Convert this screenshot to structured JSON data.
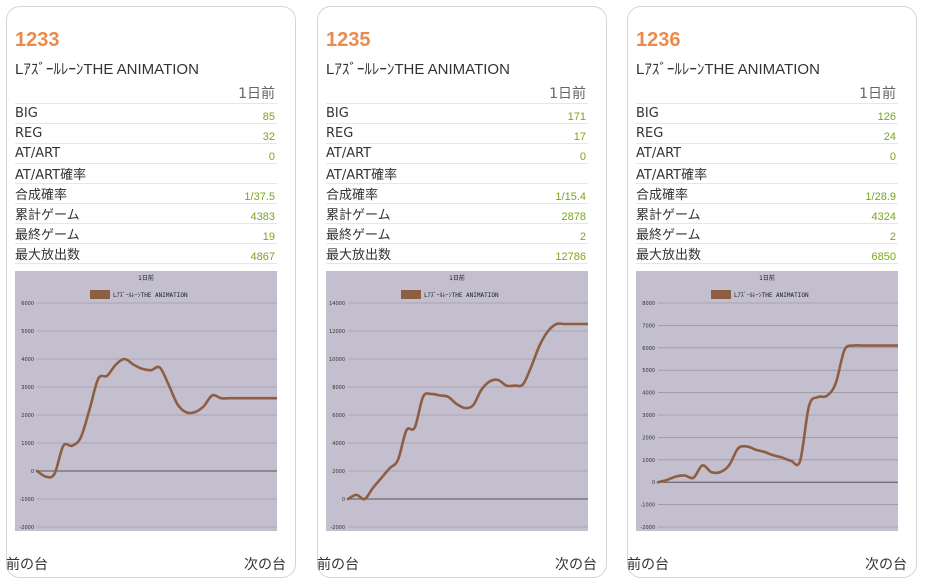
{
  "common": {
    "period_label": "1日前",
    "prev_label": "前の台",
    "next_label": "次の台",
    "colors": {
      "accent": "#ec8a4c",
      "value": "#7aa61b",
      "line": "#8e5e43",
      "plot_bg": "#c3bfcf"
    }
  },
  "machines": [
    {
      "number": "1233",
      "name": "LｱｽﾞｰﾙﾚｰﾝTHE ANIMATION",
      "rows": [
        {
          "label": "BIG",
          "value": "85"
        },
        {
          "label": "REG",
          "value": "32"
        },
        {
          "label": "AT/ART",
          "value": "0"
        },
        {
          "label": "AT/ART確率",
          "value": ""
        },
        {
          "label": "合成確率",
          "value": "1/37.5"
        },
        {
          "label": "累計ゲーム",
          "value": "4383"
        },
        {
          "label": "最終ゲーム",
          "value": "19"
        },
        {
          "label": "最大放出数",
          "value": "4867"
        }
      ]
    },
    {
      "number": "1235",
      "name": "LｱｽﾞｰﾙﾚｰﾝTHE ANIMATION",
      "rows": [
        {
          "label": "BIG",
          "value": "171"
        },
        {
          "label": "REG",
          "value": "17"
        },
        {
          "label": "AT/ART",
          "value": "0"
        },
        {
          "label": "AT/ART確率",
          "value": ""
        },
        {
          "label": "合成確率",
          "value": "1/15.4"
        },
        {
          "label": "累計ゲーム",
          "value": "2878"
        },
        {
          "label": "最終ゲーム",
          "value": "2"
        },
        {
          "label": "最大放出数",
          "value": "12786"
        }
      ]
    },
    {
      "number": "1236",
      "name": "LｱｽﾞｰﾙﾚｰﾝTHE ANIMATION",
      "rows": [
        {
          "label": "BIG",
          "value": "126"
        },
        {
          "label": "REG",
          "value": "24"
        },
        {
          "label": "AT/ART",
          "value": "0"
        },
        {
          "label": "AT/ART確率",
          "value": ""
        },
        {
          "label": "合成確率",
          "value": "1/28.9"
        },
        {
          "label": "累計ゲーム",
          "value": "4324"
        },
        {
          "label": "最終ゲーム",
          "value": "2"
        },
        {
          "label": "最大放出数",
          "value": "6850"
        }
      ]
    }
  ],
  "chart_data": [
    {
      "type": "line",
      "title": "1日前",
      "legend": "LｱｽﾞｰﾙﾚｰﾝTHE ANIMATION",
      "legend_position": "top",
      "grid": true,
      "ylim": [
        -2000,
        6000
      ],
      "yticks": [
        "6000",
        "5000",
        "4000",
        "3000",
        "2000",
        "1000",
        "0",
        "-1000",
        "-2000"
      ],
      "series": [
        {
          "x": [
            0,
            160,
            320,
            480,
            640,
            800,
            960,
            1120,
            1280,
            1440,
            1600,
            1760,
            1920,
            2080,
            2240,
            2400,
            2560,
            2720,
            2880,
            3040,
            3200,
            3360,
            3520,
            3680,
            3840,
            4000,
            4160,
            4383
          ],
          "y": [
            0,
            -200,
            -100,
            900,
            900,
            1200,
            2200,
            3300,
            3400,
            3800,
            4000,
            3800,
            3650,
            3600,
            3700,
            3100,
            2400,
            2100,
            2100,
            2300,
            2700,
            2600,
            2600,
            2600,
            2600,
            2600,
            2600,
            2600
          ]
        }
      ]
    },
    {
      "type": "line",
      "title": "1日前",
      "legend": "LｱｽﾞｰﾙﾚｰﾝTHE ANIMATION",
      "legend_position": "top",
      "grid": true,
      "ylim": [
        -2000,
        14000
      ],
      "yticks": [
        "14000",
        "12000",
        "10000",
        "8000",
        "6000",
        "4000",
        "2000",
        "0",
        "-2000"
      ],
      "series": [
        {
          "x": [
            0,
            100,
            200,
            300,
            400,
            500,
            600,
            700,
            800,
            900,
            1000,
            1100,
            1200,
            1300,
            1400,
            1500,
            1600,
            1700,
            1800,
            1900,
            2000,
            2100,
            2200,
            2300,
            2400,
            2500,
            2600,
            2700,
            2800,
            2878
          ],
          "y": [
            0,
            300,
            0,
            800,
            1500,
            2200,
            2800,
            4900,
            5100,
            7300,
            7500,
            7400,
            7300,
            6800,
            6500,
            6700,
            7800,
            8400,
            8500,
            8100,
            8100,
            8200,
            9500,
            11000,
            12000,
            12500,
            12500,
            12500,
            12500,
            12500
          ]
        }
      ]
    },
    {
      "type": "line",
      "title": "1日前",
      "legend": "LｱｽﾞｰﾙﾚｰﾝTHE ANIMATION",
      "legend_position": "top",
      "grid": true,
      "ylim": [
        -2000,
        8000
      ],
      "yticks": [
        "8000",
        "7000",
        "6000",
        "5000",
        "4000",
        "3000",
        "2000",
        "1000",
        "0",
        "-1000",
        "-2000"
      ],
      "series": [
        {
          "x": [
            0,
            160,
            320,
            480,
            640,
            800,
            960,
            1120,
            1280,
            1440,
            1600,
            1760,
            1920,
            2080,
            2240,
            2400,
            2560,
            2720,
            2880,
            3040,
            3200,
            3360,
            3520,
            3680,
            3840,
            4000,
            4160,
            4324
          ],
          "y": [
            0,
            100,
            250,
            300,
            200,
            750,
            450,
            450,
            750,
            1500,
            1600,
            1450,
            1350,
            1200,
            1100,
            950,
            950,
            3400,
            3800,
            3850,
            4400,
            5900,
            6100,
            6100,
            6100,
            6100,
            6100,
            6100
          ]
        }
      ]
    }
  ]
}
